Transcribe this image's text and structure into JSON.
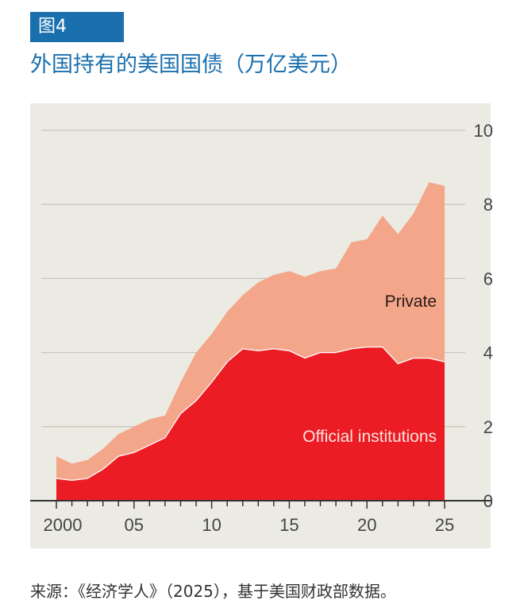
{
  "badge": "图4",
  "title": "外国持有的美国国债（万亿美元）",
  "source": "来源：《经济学人》（2025），基于美国财政部数据。",
  "colors": {
    "brand": "#1a6fad",
    "official": "#ec1c24",
    "private": "#f4a68b",
    "background": "#ecebe3"
  },
  "chart_data": {
    "type": "area",
    "stacked": true,
    "x": [
      2000,
      2001,
      2002,
      2003,
      2004,
      2005,
      2006,
      2007,
      2008,
      2009,
      2010,
      2011,
      2012,
      2013,
      2014,
      2015,
      2016,
      2017,
      2018,
      2019,
      2020,
      2021,
      2022,
      2023,
      2024,
      2025
    ],
    "series": [
      {
        "name": "Official institutions",
        "values": [
          0.6,
          0.55,
          0.6,
          0.85,
          1.2,
          1.3,
          1.5,
          1.7,
          2.35,
          2.7,
          3.2,
          3.75,
          4.1,
          4.05,
          4.1,
          4.05,
          3.85,
          4.0,
          4.0,
          4.1,
          4.15,
          4.15,
          3.7,
          3.85,
          3.85,
          3.75
        ]
      },
      {
        "name": "Private",
        "values": [
          0.6,
          0.45,
          0.5,
          0.55,
          0.6,
          0.7,
          0.7,
          0.6,
          0.85,
          1.3,
          1.3,
          1.35,
          1.45,
          1.85,
          2.0,
          2.15,
          2.2,
          2.2,
          2.27,
          2.88,
          2.91,
          3.55,
          3.5,
          3.91,
          4.75,
          4.75
        ]
      }
    ],
    "totals_note_free": true,
    "ylim": [
      0,
      10
    ],
    "yticks": [
      "0",
      "2",
      "4",
      "6",
      "8",
      "10"
    ],
    "xticks": [
      "2000",
      "05",
      "10",
      "15",
      "20",
      "25"
    ],
    "xlim": [
      2000,
      2025
    ],
    "y_axis_side": "right",
    "grid": true,
    "labels": {
      "private": "Private",
      "official": "Official institutions"
    }
  }
}
